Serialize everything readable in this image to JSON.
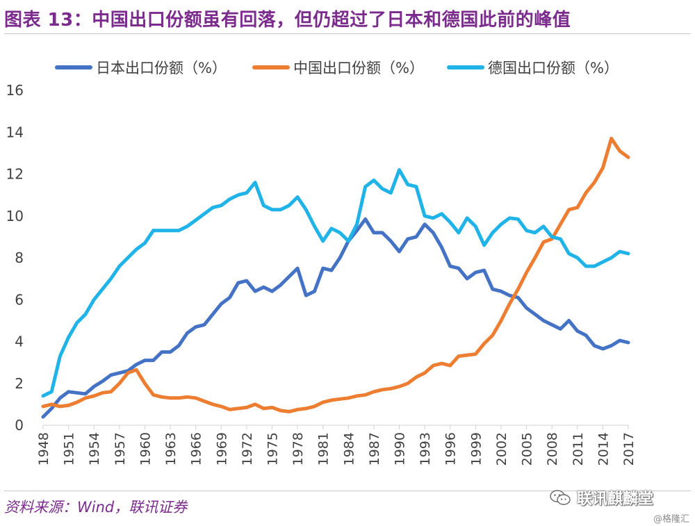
{
  "figure": {
    "title": "图表 13：中国出口份额虽有回落，但仍超过了日本和德国此前的峰值",
    "source": "资料来源：Wind，联讯证券",
    "watermark": "联讯麒麟堂",
    "credit": "@格隆汇"
  },
  "colors": {
    "title": "#7a2b8c",
    "japan": "#4472c4",
    "china": "#ed7d31",
    "germany": "#1fb3e8"
  },
  "icons": {
    "watermark": "wechat-chat-bubble-icon"
  },
  "chart_data": {
    "type": "line",
    "title": "",
    "xlabel": "",
    "ylabel": "",
    "x": [
      1948,
      1949,
      1950,
      1951,
      1952,
      1953,
      1954,
      1955,
      1956,
      1957,
      1958,
      1959,
      1960,
      1961,
      1962,
      1963,
      1964,
      1965,
      1966,
      1967,
      1968,
      1969,
      1970,
      1971,
      1972,
      1973,
      1974,
      1975,
      1976,
      1977,
      1978,
      1979,
      1980,
      1981,
      1982,
      1983,
      1984,
      1985,
      1986,
      1987,
      1988,
      1989,
      1990,
      1991,
      1992,
      1993,
      1994,
      1995,
      1996,
      1997,
      1998,
      1999,
      2000,
      2001,
      2002,
      2003,
      2004,
      2005,
      2006,
      2007,
      2008,
      2009,
      2010,
      2011,
      2012,
      2013,
      2014,
      2015,
      2016,
      2017
    ],
    "xticks": [
      "1948",
      "1951",
      "1954",
      "1957",
      "1960",
      "1963",
      "1966",
      "1969",
      "1972",
      "1975",
      "1978",
      "1981",
      "1984",
      "1987",
      "1990",
      "1993",
      "1996",
      "1999",
      "2002",
      "2005",
      "2008",
      "2011",
      "2014",
      "2017"
    ],
    "ylim": [
      0,
      16
    ],
    "yticks": [
      "0",
      "2",
      "4",
      "6",
      "8",
      "10",
      "12",
      "14",
      "16"
    ],
    "grid": false,
    "legend": "top",
    "series": [
      {
        "name": "日本出口份额（%）",
        "color": "#4472c4",
        "values": [
          0.4,
          0.8,
          1.3,
          1.6,
          1.55,
          1.5,
          1.85,
          2.1,
          2.4,
          2.5,
          2.6,
          2.9,
          3.1,
          3.1,
          3.5,
          3.5,
          3.8,
          4.4,
          4.7,
          4.8,
          5.3,
          5.8,
          6.1,
          6.8,
          6.9,
          6.4,
          6.6,
          6.4,
          6.7,
          7.1,
          7.5,
          6.2,
          6.4,
          7.5,
          7.4,
          8.0,
          8.8,
          9.3,
          9.85,
          9.2,
          9.2,
          8.8,
          8.3,
          8.9,
          9.0,
          9.6,
          9.2,
          8.5,
          7.6,
          7.5,
          7.0,
          7.3,
          7.4,
          6.5,
          6.4,
          6.2,
          6.1,
          5.6,
          5.3,
          5.0,
          4.8,
          4.6,
          5.0,
          4.5,
          4.3,
          3.8,
          3.65,
          3.8,
          4.05,
          3.95
        ]
      },
      {
        "name": "中国出口份额（%）",
        "color": "#ed7d31",
        "values": [
          0.9,
          1.0,
          0.9,
          0.95,
          1.1,
          1.3,
          1.4,
          1.55,
          1.6,
          2.0,
          2.5,
          2.65,
          2.0,
          1.45,
          1.35,
          1.3,
          1.3,
          1.35,
          1.3,
          1.15,
          1.0,
          0.9,
          0.75,
          0.8,
          0.85,
          1.0,
          0.8,
          0.85,
          0.7,
          0.65,
          0.75,
          0.8,
          0.9,
          1.1,
          1.2,
          1.25,
          1.3,
          1.4,
          1.45,
          1.6,
          1.7,
          1.75,
          1.85,
          2.0,
          2.3,
          2.5,
          2.85,
          2.95,
          2.85,
          3.3,
          3.35,
          3.4,
          3.9,
          4.3,
          5.0,
          5.8,
          6.5,
          7.3,
          8.0,
          8.75,
          8.9,
          9.6,
          10.3,
          10.4,
          11.1,
          11.6,
          12.3,
          13.7,
          13.1,
          12.8
        ]
      },
      {
        "name": "德国出口份额（%）",
        "color": "#1fb3e8",
        "values": [
          1.4,
          1.6,
          3.3,
          4.2,
          4.9,
          5.3,
          6.0,
          6.5,
          7.0,
          7.6,
          8.0,
          8.4,
          8.7,
          9.3,
          9.3,
          9.3,
          9.3,
          9.5,
          9.8,
          10.1,
          10.4,
          10.5,
          10.8,
          11.0,
          11.1,
          11.6,
          10.5,
          10.3,
          10.3,
          10.5,
          10.9,
          10.3,
          9.5,
          8.8,
          9.4,
          9.2,
          8.8,
          9.6,
          11.4,
          11.7,
          11.3,
          11.1,
          12.2,
          11.5,
          11.4,
          10.0,
          9.9,
          10.1,
          9.7,
          9.2,
          9.9,
          9.5,
          8.6,
          9.2,
          9.6,
          9.9,
          9.85,
          9.3,
          9.2,
          9.5,
          9.0,
          8.9,
          8.2,
          8.0,
          7.6,
          7.6,
          7.8,
          8.0,
          8.3,
          8.2
        ]
      }
    ]
  }
}
